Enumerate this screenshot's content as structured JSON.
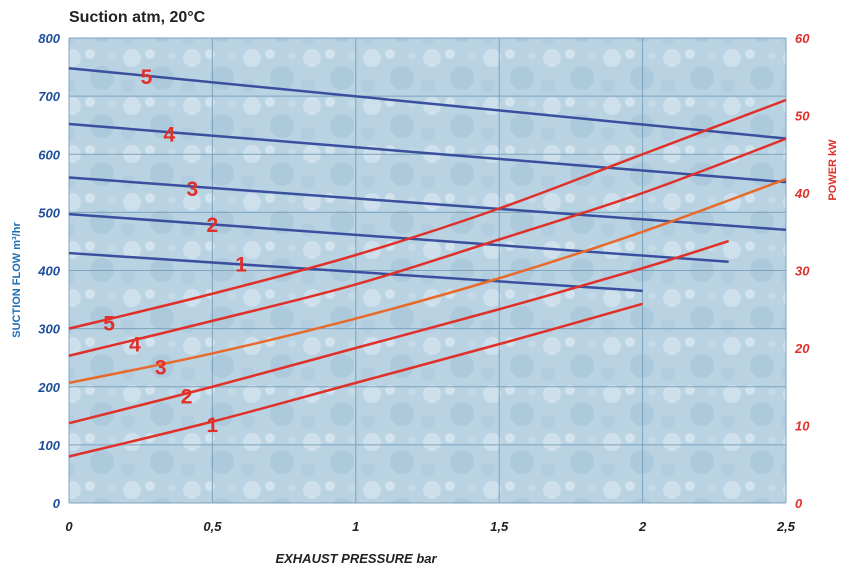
{
  "chart_data": {
    "type": "line",
    "title": "Suction atm, 20°C",
    "xlabel": "EXHAUST PRESSURE bar",
    "ylabel_left": "SUCTION FLOW m³/hr",
    "ylabel_right": "POWER kW",
    "xlim": [
      0,
      2.5
    ],
    "ylim_left": [
      0,
      800
    ],
    "ylim_right": [
      0,
      60
    ],
    "x_ticks": [
      "0",
      "0,5",
      "1",
      "1,5",
      "2",
      "2,5"
    ],
    "y_left_ticks": [
      "0",
      "100",
      "200",
      "300",
      "400",
      "500",
      "600",
      "700",
      "800"
    ],
    "y_right_ticks": [
      "0",
      "10",
      "20",
      "30",
      "40",
      "50",
      "60"
    ],
    "grid": true,
    "colors": {
      "flow": "#3a4f9e",
      "power": "#e0302a",
      "power_3": "#e86a2a",
      "background": "#b9d3e3",
      "grid": "#7fa3bd"
    },
    "flow_series": [
      {
        "name": "1",
        "axis": "left",
        "x": [
          0,
          2
        ],
        "y": [
          430,
          365
        ],
        "label_at": [
          0.6,
          412
        ]
      },
      {
        "name": "2",
        "axis": "left",
        "x": [
          0,
          2.3
        ],
        "y": [
          497,
          415
        ],
        "label_at": [
          0.5,
          480
        ]
      },
      {
        "name": "3",
        "axis": "left",
        "x": [
          0,
          2.5
        ],
        "y": [
          560,
          470
        ],
        "label_at": [
          0.43,
          542
        ]
      },
      {
        "name": "4",
        "axis": "left",
        "x": [
          0,
          2.5
        ],
        "y": [
          652,
          552
        ],
        "label_at": [
          0.35,
          636
        ]
      },
      {
        "name": "5",
        "axis": "left",
        "x": [
          0,
          2.5
        ],
        "y": [
          748,
          627
        ],
        "label_at": [
          0.27,
          735
        ]
      }
    ],
    "power_series": [
      {
        "name": "1",
        "axis": "right",
        "x": [
          0,
          0.5,
          1,
          1.5,
          2
        ],
        "y": [
          6,
          10.5,
          15.5,
          20.5,
          25.7
        ],
        "label_at": [
          0.5,
          10.2
        ]
      },
      {
        "name": "2",
        "axis": "right",
        "x": [
          0,
          0.5,
          1,
          1.5,
          2,
          2.3
        ],
        "y": [
          10.3,
          15,
          20,
          25,
          30.3,
          33.8
        ],
        "label_at": [
          0.41,
          13.9
        ]
      },
      {
        "name": "3",
        "axis": "right",
        "x": [
          0,
          0.5,
          1,
          1.5,
          2,
          2.5
        ],
        "y": [
          15.5,
          19.3,
          23.8,
          29,
          35,
          41.8
        ],
        "label_at": [
          0.32,
          17.6
        ]
      },
      {
        "name": "4",
        "axis": "right",
        "x": [
          0,
          0.5,
          1,
          1.5,
          2,
          2.5
        ],
        "y": [
          19,
          23.5,
          28.2,
          34,
          40,
          47
        ],
        "label_at": [
          0.23,
          20.6
        ]
      },
      {
        "name": "5",
        "axis": "right",
        "x": [
          0,
          0.5,
          1,
          1.5,
          2,
          2.5
        ],
        "y": [
          22.5,
          27,
          32,
          38,
          45,
          52
        ],
        "label_at": [
          0.14,
          23.3
        ]
      }
    ]
  }
}
